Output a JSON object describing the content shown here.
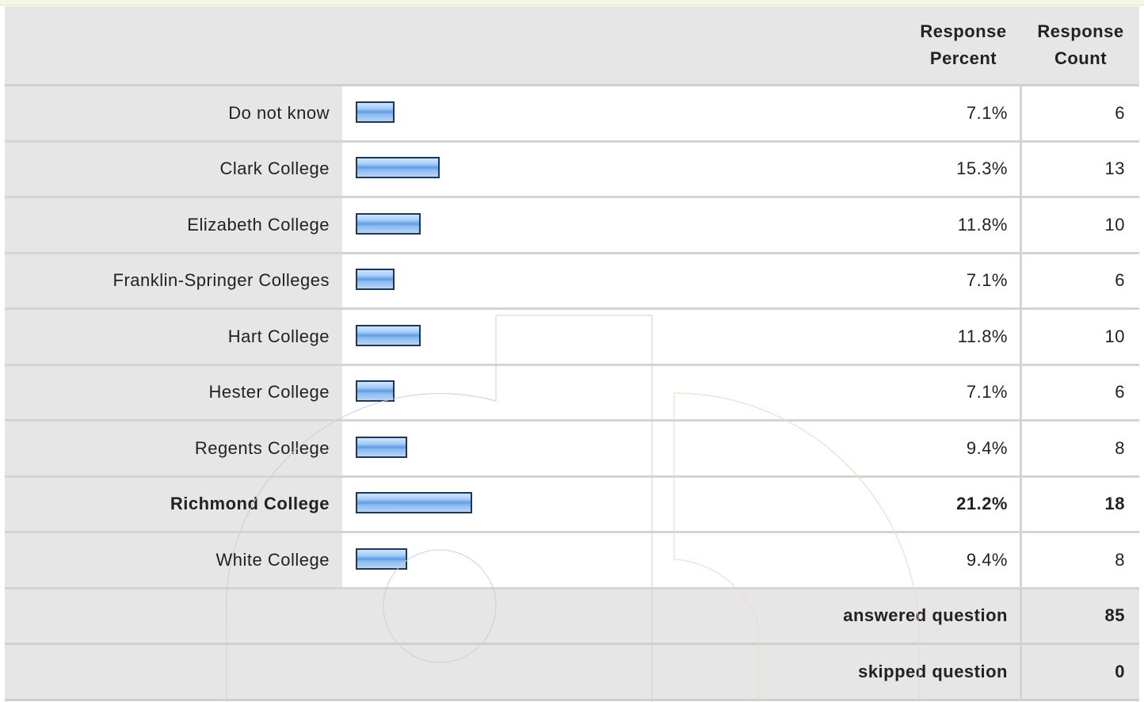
{
  "header": {
    "percent_label": "Response\nPercent",
    "count_label": "Response\nCount"
  },
  "chart_data": {
    "type": "bar",
    "orientation": "horizontal",
    "categories": [
      "Do not know",
      "Clark College",
      "Elizabeth College",
      "Franklin-Springer Colleges",
      "Hart College",
      "Hester College",
      "Regents College",
      "Richmond College",
      "White College"
    ],
    "series": [
      {
        "values": [
          7.1,
          15.3,
          11.8,
          7.1,
          11.8,
          7.1,
          9.4,
          21.2,
          9.4
        ]
      }
    ],
    "percent_labels": [
      "7.1%",
      "15.3%",
      "11.8%",
      "7.1%",
      "11.8%",
      "7.1%",
      "9.4%",
      "21.2%",
      "9.4%"
    ],
    "counts": [
      "6",
      "13",
      "10",
      "6",
      "10",
      "6",
      "8",
      "18",
      "8"
    ],
    "highlighted_category": "Richmond College",
    "xlim": [
      0,
      100
    ],
    "bar_color": "#7fb3ee",
    "bar_border_color": "#1d3756",
    "grid": false
  },
  "summary": {
    "answered_label": "answered question",
    "answered_value": "85",
    "skipped_label": "skipped question",
    "skipped_value": "0"
  },
  "colors": {
    "label_background": "#e6e6e6",
    "cell_background": "#ffffff",
    "divider": "#d4d4d4"
  }
}
